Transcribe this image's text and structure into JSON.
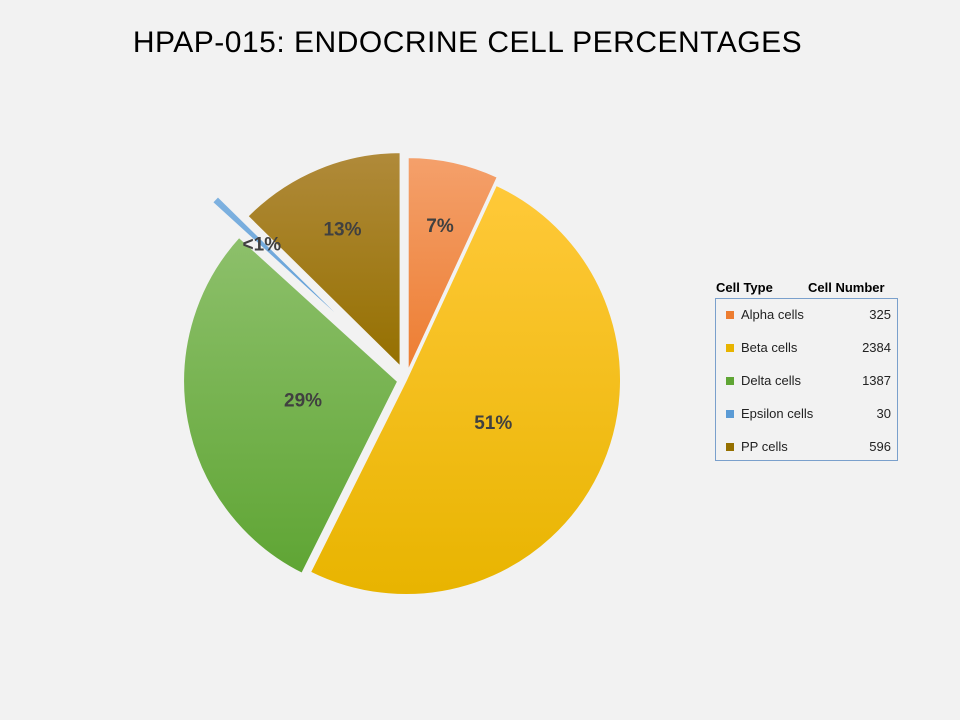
{
  "chart_data": {
    "type": "pie",
    "title": "HPAP-015: ENDOCRINE CELL PERCENTAGES",
    "legend": {
      "header_type": "Cell Type",
      "header_number": "Cell Number",
      "placement": "right"
    },
    "slices": [
      {
        "name": "Alpha cells",
        "value": 325,
        "label": "7%",
        "color": "#ed7d31",
        "color_light": "#f4a06b"
      },
      {
        "name": "Beta cells",
        "value": 2384,
        "label": "51%",
        "color": "#e8b400",
        "color_light": "#ffc939"
      },
      {
        "name": "Delta cells",
        "value": 1387,
        "label": "29%",
        "color": "#5fa534",
        "color_light": "#8dc06b"
      },
      {
        "name": "Epsilon cells",
        "value": 30,
        "label": "<1%",
        "color": "#5b9bd5",
        "color_light": "#7fb2e0"
      },
      {
        "name": "PP cells",
        "value": 596,
        "label": "13%",
        "color": "#957000",
        "color_light": "#b08a3a"
      }
    ]
  }
}
